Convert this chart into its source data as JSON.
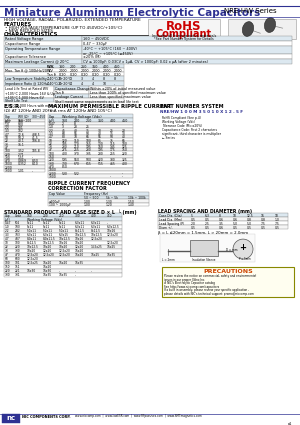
{
  "title": "Miniature Aluminum Electrolytic Capacitors",
  "series": "NRE-HW Series",
  "subtitle": "HIGH VOLTAGE, RADIAL, POLARIZED, EXTENDED TEMPERATURE",
  "features": [
    "HIGH VOLTAGE/TEMPERATURE (UP TO 450VDC/+105°C)",
    "NEW REDUCED SIZES"
  ],
  "bg_color": "#ffffff",
  "header_color": "#2e3192",
  "rohs_color": "#cc0000"
}
